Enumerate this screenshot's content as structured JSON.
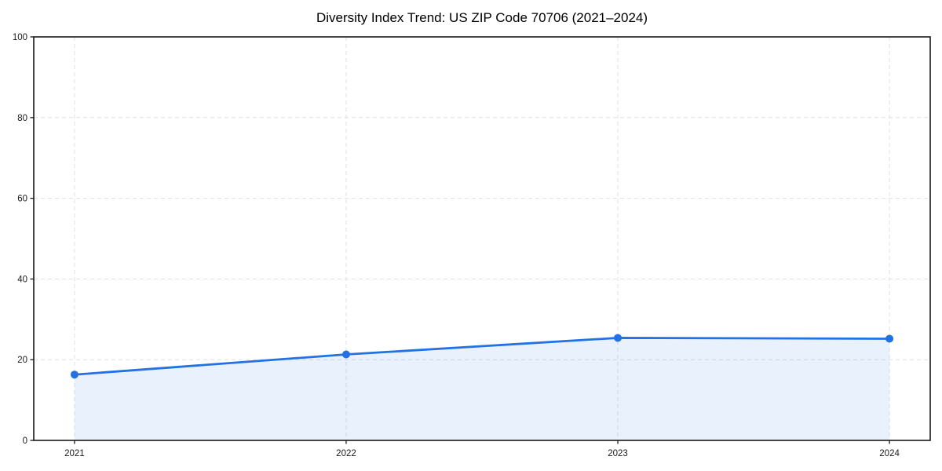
{
  "chart_data": {
    "type": "area",
    "title": "Diversity Index Trend: US ZIP Code 70706 (2021–2024)",
    "series_name": "Diversity Index",
    "x": [
      2021,
      2022,
      2023,
      2024
    ],
    "values": [
      16.3,
      21.3,
      25.4,
      25.2
    ],
    "xticks": [
      "2021",
      "2022",
      "2023",
      "2024"
    ],
    "yticks": [
      0,
      20,
      40,
      60,
      80,
      100
    ],
    "xlim": [
      2020.85,
      2024.15
    ],
    "ylim": [
      0,
      100
    ],
    "xlabel": "",
    "ylabel": "",
    "grid": "dashed-both-axes",
    "legend": "none",
    "colors": {
      "line": "#2272e4",
      "marker": "#2272e4",
      "area_fill": "#2272e4",
      "area_fill_opacity": "0.10",
      "grid": "#e0e0e0",
      "plot_border": "#1a1a1a",
      "tick_label": "#1a1a1a",
      "title": "#000000",
      "background": "#ffffff"
    }
  }
}
